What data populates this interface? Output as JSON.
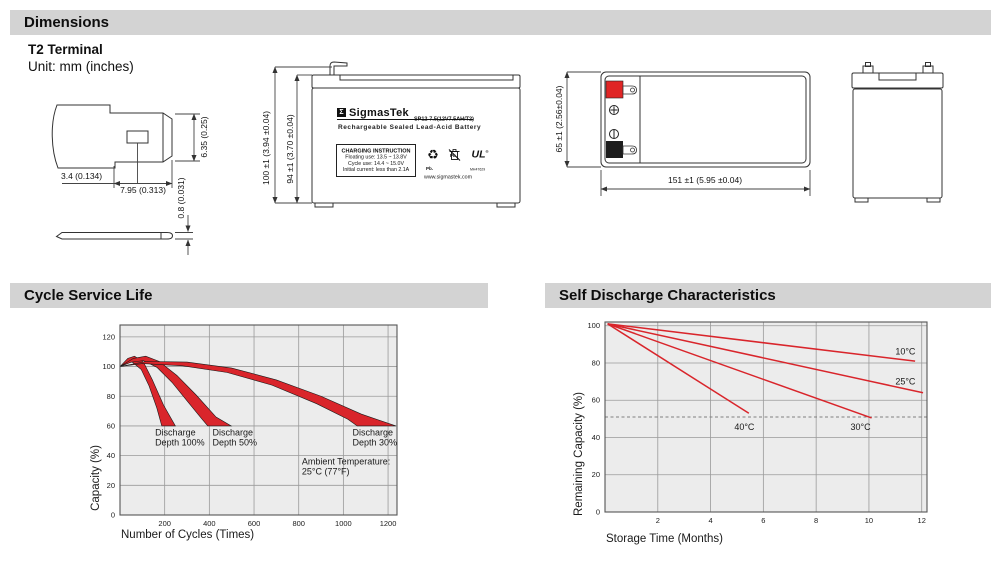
{
  "page": {
    "background": "#ffffff",
    "header_bar_color": "#d3d3d3",
    "accent_red": "#d9252b"
  },
  "sections": {
    "dimensions": {
      "title": "Dimensions"
    },
    "cycle": {
      "title": "Cycle Service Life"
    },
    "self_discharge": {
      "title": "Self Discharge Characteristics"
    }
  },
  "dimensions": {
    "subtitle": "T2 Terminal",
    "unit_note": "Unit: mm (inches)",
    "terminal_detail": {
      "dim_offset": "3.4 (0.134)",
      "dim_tab_width": "7.95 (0.313)",
      "dim_tab_height": "6.35 (0.25)",
      "dim_thickness": "0.8 (0.031)"
    },
    "front_view": {
      "dim_total_height": "100 ±1 (3.94 ±0.04)",
      "dim_case_height": "94 ±1 (3.70 ±0.04)",
      "label": {
        "logo_glyph": "Σ",
        "brand": "SigmasTek",
        "model": "SP12-7.5(12V7.5AH/T2)",
        "type_line": "Rechargeable Sealed Lead-Acid Battery",
        "charging_box": {
          "title": "CHARGING INSTRUCTION",
          "line1": "Floating use: 13.5 ~ 13.8V",
          "line2": "Cycle use: 14.4 ~ 15.0V",
          "line3": "Initial current: less than 2.1A"
        },
        "pb_recycle_glyph": "♻",
        "pb_recycle_label": "Pb.",
        "pb_trash_label": "Pb",
        "ul_text": "UL",
        "ul_reg_mark": "®",
        "ul_number": "MH47629",
        "website": "www.sigmastek.com"
      }
    },
    "top_view": {
      "dim_depth": "65 ±1 (2.56±0.04)",
      "dim_width": "151 ±1 (5.95 ±0.04)",
      "positive_color": "#e02525",
      "negative_color": "#1d1d1d"
    }
  },
  "chart_data": [
    {
      "id": "cycle",
      "type": "area",
      "title": "Cycle Service Life",
      "xlabel": "Number of Cycles (Times)",
      "ylabel": "Capacity (%)",
      "xlim": [
        0,
        1240
      ],
      "ylim": [
        0,
        128
      ],
      "xticks": [
        200,
        400,
        600,
        800,
        1000,
        1200
      ],
      "yticks": [
        0,
        20,
        40,
        60,
        80,
        100,
        120
      ],
      "grid": true,
      "plot_bg": "#ececec",
      "series": [
        {
          "name": "Discharge Depth 100%",
          "color": "#d9252b",
          "band": true,
          "upper": [
            [
              0,
              100
            ],
            [
              35,
              105.5
            ],
            [
              65,
              107
            ],
            [
              105,
              103
            ],
            [
              145,
              91
            ],
            [
              195,
              74
            ],
            [
              248,
              60
            ]
          ],
          "lower": [
            [
              0,
              100
            ],
            [
              30,
              102.5
            ],
            [
              55,
              103
            ],
            [
              95,
              98
            ],
            [
              130,
              87
            ],
            [
              165,
              72
            ],
            [
              187,
              60
            ]
          ]
        },
        {
          "name": "Discharge Depth 50%",
          "color": "#d9252b",
          "band": true,
          "upper": [
            [
              0,
              100
            ],
            [
              60,
              105.5
            ],
            [
              115,
              107
            ],
            [
              175,
              103.5
            ],
            [
              255,
              94
            ],
            [
              340,
              81
            ],
            [
              430,
              66
            ],
            [
              498,
              60
            ]
          ],
          "lower": [
            [
              0,
              100
            ],
            [
              50,
              103
            ],
            [
              105,
              104
            ],
            [
              165,
              99.5
            ],
            [
              235,
              89
            ],
            [
              305,
              76
            ],
            [
              365,
              65
            ],
            [
              393,
              60
            ]
          ]
        },
        {
          "name": "Discharge Depth 30%",
          "color": "#d9252b",
          "band": true,
          "upper": [
            [
              0,
              100
            ],
            [
              120,
              103.5
            ],
            [
              300,
              103
            ],
            [
              500,
              99
            ],
            [
              700,
              91
            ],
            [
              900,
              80
            ],
            [
              1080,
              68
            ],
            [
              1235,
              60
            ]
          ],
          "lower": [
            [
              0,
              100
            ],
            [
              100,
              102
            ],
            [
              280,
              100.5
            ],
            [
              480,
              96
            ],
            [
              680,
              87.5
            ],
            [
              880,
              75
            ],
            [
              1020,
              64.5
            ],
            [
              1062,
              60
            ]
          ]
        }
      ],
      "annotations": [
        {
          "lines": [
            "Discharge",
            "Depth 100%"
          ],
          "x": 157,
          "y": 53.5
        },
        {
          "lines": [
            "Discharge",
            "Depth 50%"
          ],
          "x": 414,
          "y": 53.5
        },
        {
          "lines": [
            "Discharge",
            "Depth 30%"
          ],
          "x": 1041,
          "y": 53.5
        },
        {
          "lines": [
            "Ambient Temperature:",
            "25°C (77°F)"
          ],
          "x": 814,
          "y": 34
        }
      ]
    },
    {
      "id": "self",
      "type": "line",
      "title": "Self Discharge Characteristics",
      "xlabel": "Storage Time (Months)",
      "ylabel": "Remaining Capacity (%)",
      "xlim": [
        0,
        12.2
      ],
      "ylim": [
        0,
        102
      ],
      "xticks": [
        2,
        4,
        6,
        8,
        10,
        12
      ],
      "yticks": [
        0,
        20,
        40,
        60,
        80,
        100
      ],
      "grid": true,
      "plot_bg": "#ececec",
      "dashed_line": {
        "y": 51,
        "color": "#808080"
      },
      "series": [
        {
          "name": "10°C",
          "color": "#d9252b",
          "points": [
            [
              0.1,
              101
            ],
            [
              11.75,
              81
            ]
          ],
          "label_x": 11.0,
          "label_y": 84.5
        },
        {
          "name": "25°C",
          "color": "#d9252b",
          "points": [
            [
              0.1,
              101
            ],
            [
              12.05,
              64
            ]
          ],
          "label_x": 11.0,
          "label_y": 68.5
        },
        {
          "name": "30°C",
          "color": "#d9252b",
          "points": [
            [
              0.1,
              101
            ],
            [
              10.1,
              50.5
            ]
          ],
          "label_x": 9.3,
          "label_y": 44
        },
        {
          "name": "40°C",
          "color": "#d9252b",
          "points": [
            [
              0.1,
              101
            ],
            [
              5.45,
              53
            ]
          ],
          "label_x": 4.9,
          "label_y": 44
        }
      ]
    }
  ]
}
